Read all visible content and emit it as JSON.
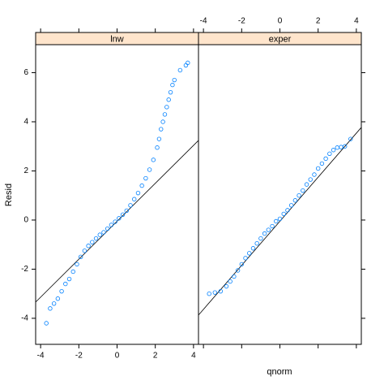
{
  "chart_data": {
    "type": "scatter",
    "xlabel": "qnorm",
    "ylabel": "Resid",
    "xlim": [
      -4.26,
      4.26
    ],
    "ylim": [
      -5.06,
      7.14
    ],
    "xticks": [
      -4,
      -2,
      0,
      2,
      4
    ],
    "yticks": [
      -4,
      -2,
      0,
      2,
      4,
      6
    ],
    "color": "#0080ff",
    "strip_color": "#ffe5cc",
    "panels": [
      {
        "title": "lnw",
        "x": [
          -3.7,
          -3.5,
          -3.3,
          -3.1,
          -2.9,
          -2.7,
          -2.5,
          -2.3,
          -2.1,
          -1.9,
          -1.7,
          -1.5,
          -1.3,
          -1.1,
          -0.9,
          -0.7,
          -0.5,
          -0.3,
          -0.1,
          0.1,
          0.3,
          0.5,
          0.7,
          0.9,
          1.1,
          1.3,
          1.5,
          1.7,
          1.9,
          2.1,
          2.2,
          2.3,
          2.4,
          2.5,
          2.6,
          2.7,
          2.8,
          2.9,
          3.0,
          3.3,
          3.6,
          3.7
        ],
        "y": [
          -4.2,
          -3.6,
          -3.4,
          -3.2,
          -2.9,
          -2.6,
          -2.4,
          -2.1,
          -1.8,
          -1.5,
          -1.25,
          -1.05,
          -0.9,
          -0.75,
          -0.6,
          -0.5,
          -0.35,
          -0.2,
          -0.07,
          0.07,
          0.22,
          0.38,
          0.6,
          0.85,
          1.1,
          1.4,
          1.7,
          2.05,
          2.45,
          2.95,
          3.3,
          3.7,
          4.0,
          4.3,
          4.6,
          4.9,
          5.2,
          5.5,
          5.7,
          6.1,
          6.3,
          6.4
        ],
        "ref_x": [
          -4.26,
          4.26
        ],
        "ref_y": [
          -3.34,
          3.24
        ]
      },
      {
        "title": "exper",
        "x": [
          -3.7,
          -3.4,
          -3.1,
          -2.8,
          -2.6,
          -2.4,
          -2.2,
          -2.0,
          -1.8,
          -1.6,
          -1.4,
          -1.2,
          -1.0,
          -0.8,
          -0.6,
          -0.4,
          -0.2,
          0,
          0.2,
          0.4,
          0.6,
          0.8,
          1.0,
          1.2,
          1.4,
          1.6,
          1.8,
          2.0,
          2.2,
          2.4,
          2.6,
          2.8,
          3.0,
          3.2,
          3.4,
          3.7
        ],
        "y": [
          -3.0,
          -2.95,
          -2.9,
          -2.7,
          -2.5,
          -2.3,
          -2.05,
          -1.8,
          -1.55,
          -1.35,
          -1.15,
          -0.95,
          -0.75,
          -0.55,
          -0.4,
          -0.25,
          -0.05,
          0.05,
          0.25,
          0.4,
          0.6,
          0.8,
          1.0,
          1.2,
          1.45,
          1.65,
          1.85,
          2.1,
          2.3,
          2.5,
          2.7,
          2.85,
          2.95,
          2.97,
          3.0,
          3.3
        ],
        "ref_x": [
          -4.26,
          4.26
        ],
        "ref_y": [
          -3.87,
          3.77
        ]
      }
    ]
  }
}
